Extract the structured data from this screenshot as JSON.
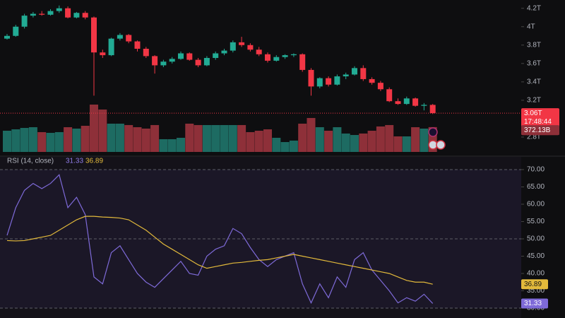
{
  "chart_data": [
    {
      "type": "candlestick",
      "open": [
        3.87,
        3.9,
        4.0,
        4.12,
        4.14,
        4.13,
        4.17,
        4.2,
        4.1,
        4.15,
        4.1,
        3.72,
        3.69,
        3.87,
        3.91,
        3.84,
        3.76,
        3.68,
        3.58,
        3.62,
        3.65,
        3.71,
        3.64,
        3.58,
        3.66,
        3.71,
        3.74,
        3.83,
        3.8,
        3.75,
        3.7,
        3.63,
        3.67,
        3.69,
        3.7,
        3.53,
        3.35,
        3.44,
        3.37,
        3.46,
        3.48,
        3.55,
        3.43,
        3.39,
        3.32,
        3.19,
        3.16,
        3.22,
        3.14,
        3.15
      ],
      "high": [
        3.92,
        4.02,
        4.14,
        4.16,
        4.17,
        4.19,
        4.23,
        4.22,
        4.16,
        4.17,
        4.11,
        3.75,
        3.88,
        3.93,
        3.92,
        3.85,
        3.78,
        3.69,
        3.64,
        3.67,
        3.73,
        3.72,
        3.66,
        3.68,
        3.73,
        3.76,
        3.85,
        3.89,
        3.82,
        3.78,
        3.72,
        3.69,
        3.7,
        3.71,
        3.71,
        3.55,
        3.45,
        3.46,
        3.48,
        3.5,
        3.57,
        3.58,
        3.45,
        3.41,
        3.34,
        3.22,
        3.24,
        3.23,
        3.17,
        3.16
      ],
      "low": [
        3.86,
        3.89,
        3.98,
        4.1,
        4.12,
        4.12,
        4.15,
        4.09,
        4.09,
        4.08,
        3.25,
        3.66,
        3.68,
        3.85,
        3.82,
        3.73,
        3.66,
        3.49,
        3.56,
        3.6,
        3.64,
        3.63,
        3.56,
        3.57,
        3.64,
        3.69,
        3.72,
        3.78,
        3.73,
        3.68,
        3.61,
        3.62,
        3.65,
        3.67,
        3.51,
        3.25,
        3.33,
        3.35,
        3.36,
        3.43,
        3.47,
        3.41,
        3.37,
        3.3,
        3.18,
        3.15,
        3.15,
        3.13,
        3.09,
        3.05
      ],
      "close": [
        3.9,
        4.0,
        4.12,
        4.14,
        4.13,
        4.17,
        4.2,
        4.1,
        4.15,
        4.1,
        3.72,
        3.69,
        3.87,
        3.91,
        3.84,
        3.76,
        3.68,
        3.58,
        3.62,
        3.65,
        3.71,
        3.64,
        3.58,
        3.66,
        3.71,
        3.74,
        3.83,
        3.8,
        3.75,
        3.7,
        3.63,
        3.67,
        3.69,
        3.7,
        3.53,
        3.35,
        3.44,
        3.37,
        3.46,
        3.48,
        3.55,
        3.43,
        3.39,
        3.32,
        3.19,
        3.16,
        3.22,
        3.14,
        3.15,
        3.06
      ],
      "volume": [
        318,
        339,
        360,
        371,
        297,
        286,
        297,
        371,
        350,
        392,
        710,
        636,
        424,
        424,
        403,
        371,
        350,
        403,
        191,
        191,
        212,
        424,
        403,
        403,
        403,
        403,
        403,
        403,
        297,
        318,
        339,
        212,
        148,
        170,
        424,
        509,
        371,
        318,
        371,
        276,
        254,
        276,
        318,
        382,
        403,
        233,
        233,
        371,
        350,
        372.13
      ],
      "up_color": "#22ab94",
      "down_color": "#f23645",
      "volume_up_color": "#1d6b62",
      "volume_down_color": "#8e3039",
      "ylim": [
        2.6,
        4.29
      ],
      "yticks": [
        {
          "value": 4.2,
          "label": "4.2T"
        },
        {
          "value": 4.0,
          "label": "4T"
        },
        {
          "value": 3.8,
          "label": "3.8T"
        },
        {
          "value": 3.6,
          "label": "3.6T"
        },
        {
          "value": 3.4,
          "label": "3.4T"
        },
        {
          "value": 3.2,
          "label": "3.2T"
        },
        {
          "value": 2.8,
          "label": "2.8T"
        }
      ],
      "last_price_label": "3.06T",
      "countdown": "17:48:44",
      "last_volume_label": "372.13B"
    },
    {
      "type": "line",
      "title": "RSI (14, close)",
      "series": [
        {
          "color": "#7e6ad8",
          "values": [
            51,
            59,
            64,
            66,
            64.5,
            66,
            68.5,
            59,
            62,
            57,
            39,
            37,
            46,
            48,
            44,
            40,
            37.5,
            36,
            38.5,
            41,
            43.5,
            40,
            39.5,
            45,
            47,
            48,
            53,
            51.5,
            47.5,
            44,
            42,
            44,
            45,
            46,
            37,
            31.5,
            37,
            33,
            39,
            36,
            44,
            46,
            41,
            38,
            35,
            31.5,
            33,
            32,
            34,
            31.33
          ]
        },
        {
          "color": "#e2b93b",
          "values": [
            49.5,
            49.4,
            49.5,
            50,
            50.5,
            51,
            52.5,
            54,
            55.5,
            56.5,
            56.5,
            56.3,
            56.2,
            56,
            55.5,
            54,
            52.5,
            50.5,
            48.5,
            47,
            45.5,
            44,
            42.5,
            41.5,
            42,
            42.5,
            43,
            43.2,
            43.5,
            43.8,
            44,
            44.5,
            45,
            45.5,
            45,
            44.5,
            44,
            43.5,
            43,
            42.5,
            42,
            41.5,
            41,
            40.5,
            40,
            39,
            38,
            37.5,
            37.5,
            36.89
          ]
        }
      ],
      "ylim": [
        27.14,
        73.67
      ],
      "yticks": [
        {
          "value": 70,
          "label": "70.00"
        },
        {
          "value": 65,
          "label": "65.00"
        },
        {
          "value": 60,
          "label": "60.00"
        },
        {
          "value": 55,
          "label": "55.00"
        },
        {
          "value": 50,
          "label": "50.00"
        },
        {
          "value": 45,
          "label": "45.00"
        },
        {
          "value": 40,
          "label": "40.00"
        },
        {
          "value": 35,
          "label": "35.00"
        },
        {
          "value": 30,
          "label": "30.00"
        }
      ],
      "band_lines": [
        70,
        50,
        30
      ]
    }
  ]
}
